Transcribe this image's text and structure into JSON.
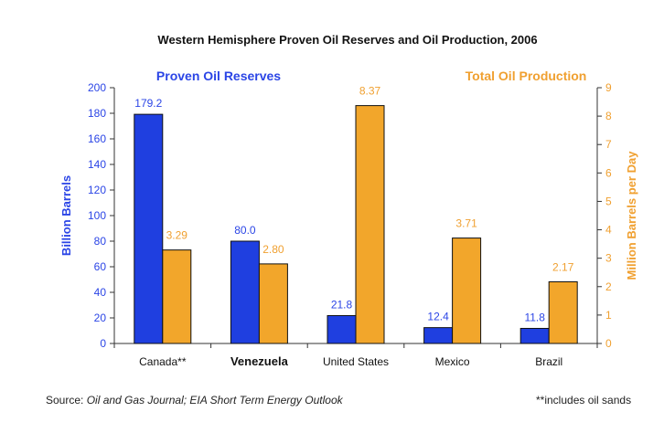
{
  "chart_data": {
    "type": "bar",
    "title": "Western Hemisphere Proven Oil Reserves and Oil Production, 2006",
    "categories": [
      "Canada**",
      "Venezuela",
      "United States",
      "Mexico",
      "Brazil"
    ],
    "series": [
      {
        "name": "Proven Oil Reserves",
        "axis": "left",
        "color": "#1f3fe0",
        "values": [
          179.2,
          80.0,
          21.8,
          12.4,
          11.8
        ],
        "labels": [
          "179.2",
          "80.0",
          "21.8",
          "12.4",
          "11.8"
        ]
      },
      {
        "name": "Total Oil Production",
        "axis": "right",
        "color": "#f2a62b",
        "values": [
          3.29,
          2.8,
          8.37,
          3.71,
          2.17
        ],
        "labels": [
          "3.29",
          "2.80",
          "8.37",
          "3.71",
          "2.17"
        ]
      }
    ],
    "ylabel_left": "Billion Barrels",
    "ylabel_right": "Million Barrels per Day",
    "ylim_left": [
      0,
      200
    ],
    "ylim_right": [
      0,
      9
    ],
    "yticks_left": [
      "0",
      "20",
      "40",
      "60",
      "80",
      "100",
      "120",
      "140",
      "160",
      "180",
      "200"
    ],
    "yticks_right": [
      "0",
      "1",
      "2",
      "3",
      "4",
      "5",
      "6",
      "7",
      "8",
      "9"
    ],
    "grid": false,
    "legend": "series names above plot"
  },
  "footer": {
    "source_prefix": "Source: ",
    "source_journal": "Oil and Gas Journal;",
    "source_outlook": " EIA Short Term Energy Outlook",
    "note": "**includes oil sands"
  }
}
